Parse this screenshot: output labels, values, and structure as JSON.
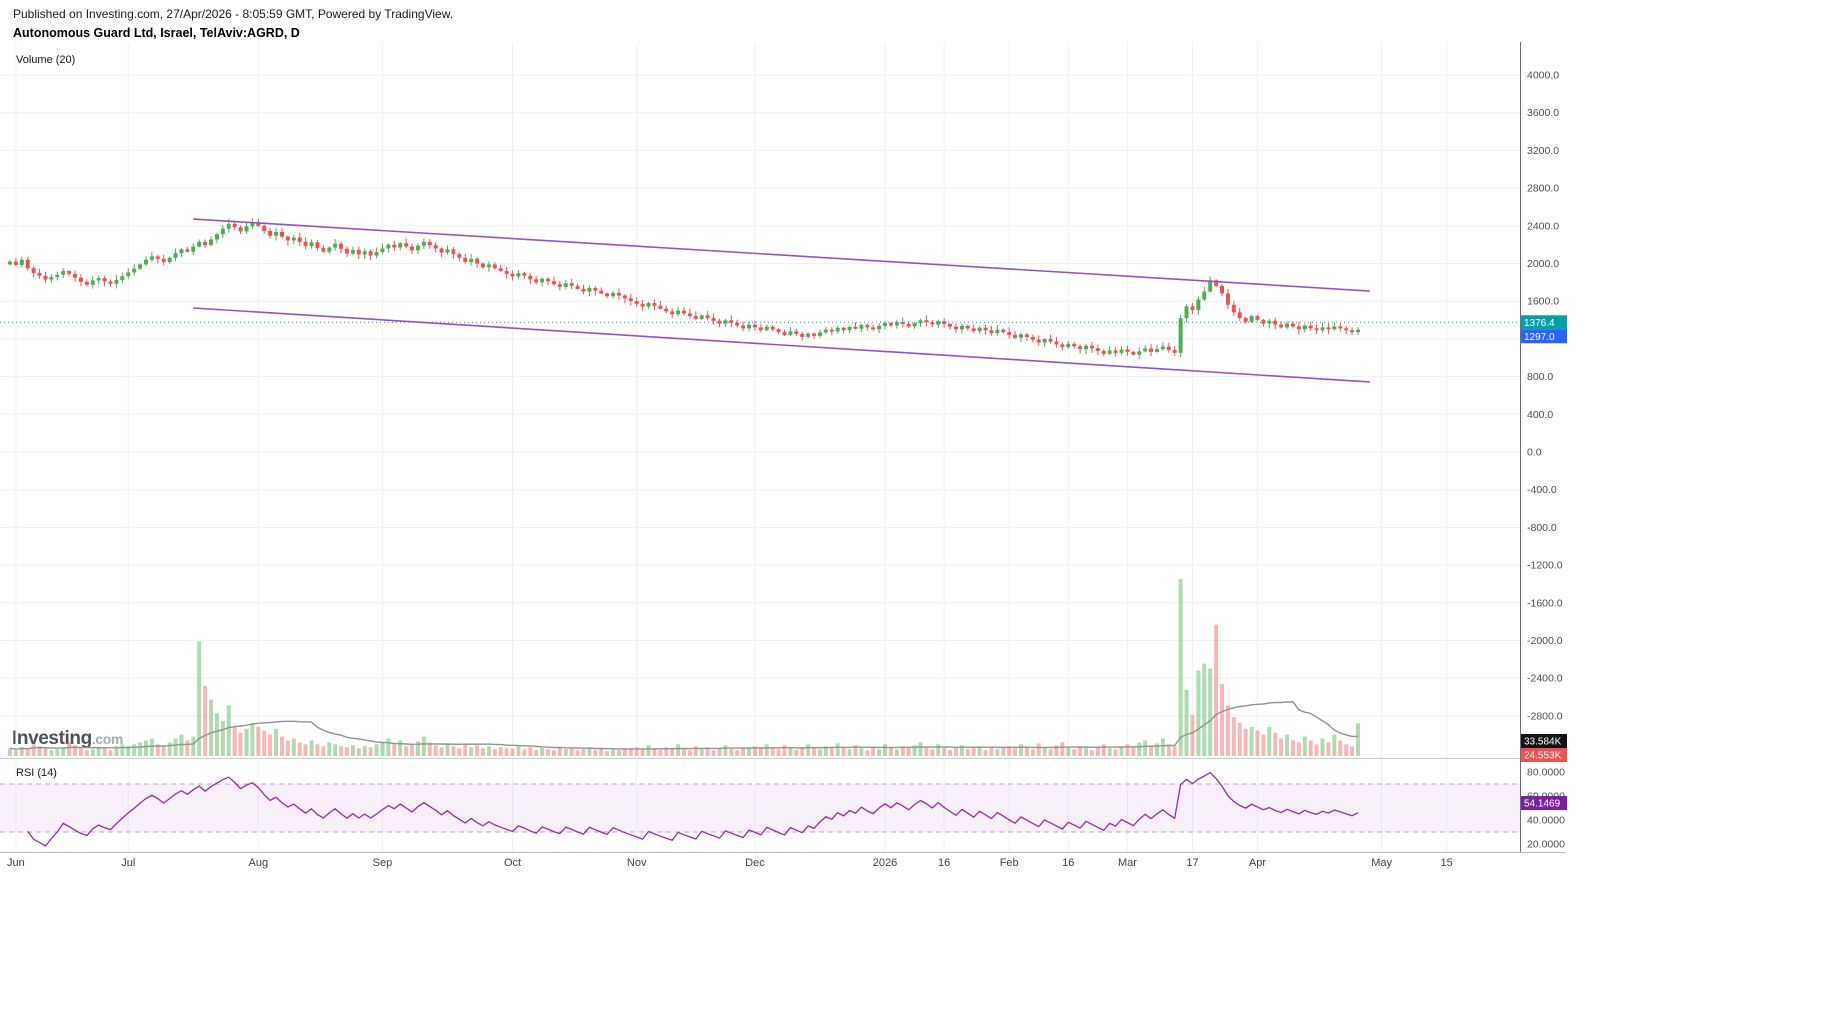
{
  "header": {
    "published_line": "Published on Investing.com, 27/Apr/2026 - 8:05:59 GMT, Powered by TradingView.",
    "symbol_title": "Autonomous Guard Ltd, Israel, TelAviv:AGRD, D"
  },
  "watermark": {
    "brand": "Investing",
    "suffix": ".com"
  },
  "indicators": {
    "volume_label": "Volume (20)",
    "rsi_label": "RSI (14)"
  },
  "badges": {
    "price_line": {
      "text": "1376.4",
      "value": 1376.4,
      "color": "#00a2a8"
    },
    "last_price": {
      "text": "1297.0",
      "value": 1297.0,
      "color": "#2962ff"
    },
    "volume": {
      "text": "33.584K",
      "color": "#131313"
    },
    "volume_ma": {
      "text": "24.553K",
      "color": "#ef5350"
    },
    "rsi": {
      "text": "54.1469",
      "value": 54.1469,
      "color": "#7b1fa2"
    }
  },
  "price_axis": {
    "ticks": [
      "4000.0",
      "3600.0",
      "3200.0",
      "2800.0",
      "2400.0",
      "2000.0",
      "1600.0",
      "1200.0",
      "800.0",
      "400.0",
      "0.0",
      "-400.0",
      "-800.0",
      "-1200.0",
      "-1600.0",
      "-2000.0",
      "-2400.0",
      "-2800.0"
    ]
  },
  "rsi_axis": {
    "ticks": [
      "80.0000",
      "60.0000",
      "40.0000",
      "20.0000"
    ]
  },
  "time_axis": {
    "labels": [
      {
        "text": "Jun",
        "index": 1
      },
      {
        "text": "Jul",
        "index": 20
      },
      {
        "text": "Aug",
        "index": 42
      },
      {
        "text": "Sep",
        "index": 63
      },
      {
        "text": "Oct",
        "index": 85
      },
      {
        "text": "Nov",
        "index": 106
      },
      {
        "text": "Dec",
        "index": 126
      },
      {
        "text": "2026",
        "index": 148
      },
      {
        "text": "16",
        "index": 158
      },
      {
        "text": "Feb",
        "index": 169
      },
      {
        "text": "16",
        "index": 179
      },
      {
        "text": "Mar",
        "index": 189
      },
      {
        "text": "17",
        "index": 200
      },
      {
        "text": "Apr",
        "index": 211
      },
      {
        "text": "May",
        "index": 232
      },
      {
        "text": "15",
        "index": 243
      }
    ]
  },
  "chart_data": {
    "type": "candlestick",
    "title": "Autonomous Guard Ltd, Israel, TelAviv:AGRD, D",
    "symbol": "TelAviv:AGRD",
    "interval": "D",
    "current_price": 1376.4,
    "last_close": 1297.0,
    "rsi_period": 14,
    "rsi_last": 54.1469,
    "rsi_levels": {
      "upper": 70,
      "lower": 30
    },
    "volume_ma_period": 20,
    "volume_last_k": 33.584,
    "volume_ma_last_k": 24.553,
    "first_open": 1990,
    "closes": [
      2020,
      1985,
      2040,
      1950,
      1900,
      1870,
      1830,
      1855,
      1880,
      1920,
      1890,
      1850,
      1805,
      1775,
      1820,
      1845,
      1810,
      1785,
      1825,
      1865,
      1905,
      1945,
      1990,
      2040,
      2075,
      2050,
      2015,
      2060,
      2110,
      2150,
      2125,
      2180,
      2230,
      2195,
      2255,
      2310,
      2370,
      2420,
      2385,
      2340,
      2395,
      2435,
      2400,
      2345,
      2295,
      2335,
      2285,
      2245,
      2275,
      2230,
      2185,
      2225,
      2165,
      2125,
      2170,
      2210,
      2155,
      2105,
      2145,
      2095,
      2130,
      2085,
      2120,
      2160,
      2200,
      2170,
      2215,
      2180,
      2140,
      2190,
      2230,
      2195,
      2160,
      2115,
      2150,
      2100,
      2060,
      2015,
      2050,
      2000,
      1960,
      1990,
      1950,
      1920,
      1890,
      1862,
      1898,
      1870,
      1832,
      1800,
      1838,
      1812,
      1780,
      1752,
      1790,
      1762,
      1730,
      1702,
      1740,
      1712,
      1682,
      1652,
      1688,
      1660,
      1630,
      1602,
      1572,
      1542,
      1580,
      1552,
      1520,
      1492,
      1462,
      1500,
      1470,
      1442,
      1412,
      1450,
      1420,
      1392,
      1362,
      1398,
      1370,
      1342,
      1312,
      1350,
      1322,
      1292,
      1330,
      1302,
      1272,
      1242,
      1280,
      1252,
      1222,
      1258,
      1232,
      1268,
      1298,
      1278,
      1318,
      1292,
      1328,
      1308,
      1348,
      1322,
      1302,
      1338,
      1368,
      1342,
      1378,
      1358,
      1332,
      1368,
      1398,
      1378,
      1352,
      1388,
      1358,
      1330,
      1302,
      1338,
      1312,
      1282,
      1318,
      1292,
      1262,
      1298,
      1272,
      1242,
      1212,
      1248,
      1220,
      1192,
      1162,
      1198,
      1172,
      1142,
      1112,
      1148,
      1122,
      1092,
      1128,
      1102,
      1072,
      1042,
      1078,
      1052,
      1088,
      1062,
      1032,
      1068,
      1098,
      1062,
      1092,
      1118,
      1082,
      1052,
      1420,
      1545,
      1505,
      1618,
      1702,
      1822,
      1762,
      1682,
      1562,
      1482,
      1422,
      1382,
      1442,
      1402,
      1362,
      1392,
      1352,
      1322,
      1362,
      1332,
      1302,
      1342,
      1312,
      1292,
      1322,
      1302,
      1332,
      1312,
      1292,
      1272,
      1297
    ],
    "volumes_k": [
      8,
      6,
      9,
      7,
      12,
      10,
      8,
      6,
      7,
      9,
      14,
      11,
      8,
      6,
      7,
      9,
      8,
      6,
      10,
      12,
      10,
      12,
      14,
      16,
      18,
      12,
      10,
      14,
      18,
      22,
      16,
      20,
      118,
      72,
      58,
      44,
      36,
      52,
      30,
      24,
      28,
      34,
      30,
      26,
      22,
      28,
      20,
      16,
      18,
      14,
      12,
      16,
      12,
      10,
      14,
      12,
      10,
      9,
      11,
      8,
      10,
      9,
      12,
      14,
      18,
      12,
      16,
      10,
      12,
      15,
      20,
      14,
      11,
      9,
      13,
      10,
      8,
      12,
      9,
      11,
      8,
      10,
      7,
      9,
      8,
      8,
      10,
      7,
      9,
      6,
      8,
      7,
      6,
      9,
      7,
      8,
      6,
      7,
      9,
      6,
      8,
      5,
      7,
      6,
      8,
      7,
      9,
      7,
      11,
      8,
      6,
      9,
      7,
      12,
      8,
      6,
      10,
      7,
      9,
      6,
      8,
      11,
      7,
      6,
      9,
      8,
      10,
      8,
      12,
      9,
      7,
      11,
      8,
      6,
      9,
      12,
      8,
      7,
      10,
      8,
      13,
      9,
      7,
      11,
      8,
      6,
      9,
      7,
      12,
      9,
      7,
      10,
      8,
      11,
      14,
      9,
      7,
      12,
      8,
      6,
      9,
      11,
      7,
      8,
      10,
      6,
      9,
      7,
      8,
      10,
      8,
      12,
      9,
      7,
      13,
      9,
      7,
      11,
      14,
      9,
      7,
      10,
      8,
      6,
      9,
      12,
      8,
      7,
      10,
      12,
      9,
      14,
      16,
      11,
      13,
      18,
      12,
      10,
      182,
      68,
      42,
      88,
      95,
      90,
      135,
      74,
      52,
      40,
      34,
      28,
      30,
      26,
      22,
      30,
      24,
      18,
      22,
      16,
      14,
      20,
      16,
      12,
      18,
      14,
      22,
      16,
      12,
      10,
      33.584
    ],
    "channel": {
      "color": "#9c50c0",
      "lines": [
        {
          "from_index": 31,
          "from_price": 2472,
          "to_index": 230,
          "to_price": 1708
        },
        {
          "from_index": 31,
          "from_price": 1528,
          "to_index": 230,
          "to_price": 743
        }
      ]
    },
    "colors": {
      "up": "#4caf50",
      "down": "#ef5350",
      "vol_up": "rgba(76,175,80,0.45)",
      "vol_down": "rgba(239,83,80,0.42)",
      "volume_ma": "#8f9399",
      "rsi": "#9c27b0",
      "rsi_band": "rgba(156,39,176,0.07)",
      "rsi_level": "rgba(120,60,150,0.45)",
      "grid": "#eef1f6",
      "price_line": "#00a2a8"
    }
  }
}
